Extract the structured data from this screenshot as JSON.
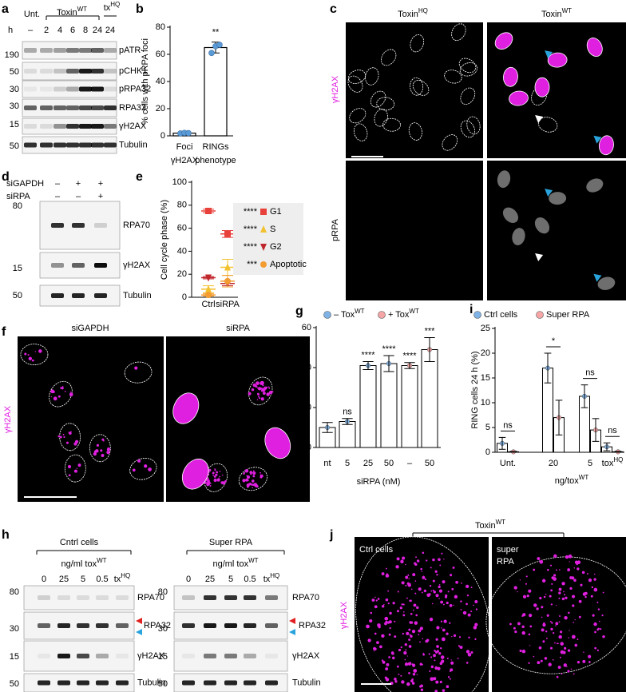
{
  "panel_labels": [
    "a",
    "b",
    "c",
    "d",
    "e",
    "f",
    "g",
    "h",
    "i",
    "j"
  ],
  "blot_a": {
    "unt": "Unt.",
    "toxin": "Toxin",
    "toxin_sup": "WT",
    "hq": "tx",
    "hq_sup": "HQ",
    "h": "h",
    "lanes": [
      "–",
      "2",
      "4",
      "6",
      "8",
      "24",
      "24"
    ],
    "mw": [
      "190",
      "50",
      "30",
      "30",
      "15",
      "50"
    ],
    "rows": [
      "pATR",
      "pCHK1",
      "pRPA32",
      "RPA32",
      "γH2AX",
      "Tubulin"
    ]
  },
  "images_c": {
    "cols": [
      {
        "text": "Toxin",
        "sup": "HQ"
      },
      {
        "text": "Toxin",
        "sup": "WT"
      }
    ],
    "rows": [
      "γH2AX",
      "pRPA"
    ]
  },
  "blot_d": {
    "conditions": [
      "siGAPDH",
      "siRPA"
    ],
    "signs": [
      [
        "–",
        "+",
        "+"
      ],
      [
        "–",
        "–",
        "+"
      ]
    ],
    "mw": [
      "80",
      "15",
      "50"
    ],
    "rows": [
      "RPA70",
      "γH2AX",
      "Tubulin"
    ]
  },
  "images_f": {
    "cols": [
      "siGAPDH",
      "siRPA"
    ],
    "row": "γH2AX"
  },
  "blot_h": [
    {
      "title": "Cntrl cells",
      "dose": "ng/ml tox",
      "dose_sup": "WT",
      "lanes": [
        "0",
        "25",
        "5",
        "0.5",
        "tx"
      ],
      "lane_sup": "HQ",
      "mw": [
        "80",
        "30",
        "15",
        "50"
      ],
      "rows": [
        "RPA70",
        "RPA32",
        "γH2AX",
        "Tubulin"
      ]
    },
    {
      "title": "Super RPA",
      "dose": "ng/ml tox",
      "dose_sup": "WT",
      "lanes": [
        "0",
        "25",
        "5",
        "0.5",
        "tx"
      ],
      "lane_sup": "HQ",
      "mw": [
        "80",
        "30",
        "15",
        "50"
      ],
      "rows": [
        "RPA70",
        "RPA32",
        "γH2AX",
        "Tubulin"
      ]
    }
  ],
  "images_j": {
    "header": "Toxin",
    "header_sup": "WT",
    "labels": [
      [
        "Ctrl cells"
      ],
      [
        "super",
        "RPA"
      ]
    ],
    "row": "γH2AX"
  },
  "chart_data": [
    {
      "type": "bar",
      "ylabel": "% cells with pRPA foci",
      "categories": [
        "Foci",
        "RINGs"
      ],
      "sublabels": [
        "γH2AX",
        "phenotype"
      ],
      "values": [
        2,
        65
      ],
      "errors": [
        0.5,
        4
      ],
      "points": [
        [
          1.8,
          2.2,
          2.0
        ],
        [
          61,
          66,
          67
        ]
      ],
      "color": "#ffffff",
      "point_color": "#5b9bd5",
      "annotation": "**",
      "ylim": [
        0,
        80
      ],
      "yticks": [
        0,
        20,
        40,
        60,
        80
      ]
    },
    {
      "type": "scatter",
      "ylabel": "Cell cycle phase (%)",
      "categories": [
        "Ctrl",
        "siRPA"
      ],
      "series": [
        {
          "name": "G1",
          "color": "#e8413c",
          "marker": "square",
          "significance": "****",
          "values": [
            75,
            55
          ],
          "errors": [
            1.5,
            3
          ]
        },
        {
          "name": "S",
          "color": "#f2c12e",
          "marker": "triangle-up",
          "significance": "****",
          "values": [
            7,
            26
          ],
          "errors": [
            3,
            7
          ]
        },
        {
          "name": "G2",
          "color": "#c0272d",
          "marker": "triangle-down",
          "significance": "****",
          "values": [
            17,
            12
          ],
          "errors": [
            1,
            2
          ]
        },
        {
          "name": "Apoptotic",
          "color": "#f39c32",
          "marker": "circle",
          "significance": "***",
          "values": [
            2,
            14
          ],
          "errors": [
            1,
            5
          ]
        }
      ],
      "ylim": [
        0,
        100
      ],
      "yticks": [
        0,
        20,
        40,
        60,
        80,
        100
      ]
    },
    {
      "type": "bar",
      "ylabel": "RING cells 24 h (%)",
      "xlabel": "siRPA (nM)",
      "categories": [
        "nt",
        "5",
        "25",
        "50",
        "–",
        "50"
      ],
      "series": [
        {
          "name": "– Tox",
          "name_sup": "WT",
          "color": "#7fb2e5",
          "values": [
            10,
            13,
            41,
            42,
            null,
            null
          ],
          "errors": [
            2.5,
            1.5,
            2,
            4,
            null,
            null
          ]
        },
        {
          "name": "+ Tox",
          "name_sup": "WT",
          "color": "#f4a6a6",
          "values": [
            null,
            null,
            null,
            null,
            41,
            49
          ],
          "errors": [
            null,
            null,
            null,
            null,
            1.5,
            6
          ]
        }
      ],
      "annotations": [
        null,
        "ns",
        "****",
        "****",
        "****",
        "***"
      ],
      "ylim": [
        0,
        60
      ],
      "yticks": [
        0,
        20,
        40,
        60
      ]
    },
    {
      "type": "bar",
      "ylabel": "RING cells 24 h (%)",
      "xlabel": "ng/tox",
      "xlabel_sup": "WT",
      "categories": [
        "Unt.",
        "20",
        "5",
        "tox"
      ],
      "category_sups": [
        null,
        null,
        null,
        "HQ"
      ],
      "series": [
        {
          "name": "Ctrl cells",
          "color": "#7fb2e5",
          "values": [
            1.8,
            17,
            11.3,
            1.1
          ],
          "errors": [
            1.2,
            3,
            2.3,
            0.8
          ]
        },
        {
          "name": "Super RPA",
          "color": "#f4a6a6",
          "values": [
            0.1,
            7,
            4.5,
            0.1
          ],
          "errors": [
            0.1,
            3.5,
            2.3,
            0.1
          ]
        }
      ],
      "annotations": [
        "ns",
        "*",
        "ns",
        "ns"
      ],
      "ylim": [
        0,
        25
      ],
      "yticks": [
        0,
        5,
        10,
        15,
        20,
        25
      ]
    }
  ]
}
